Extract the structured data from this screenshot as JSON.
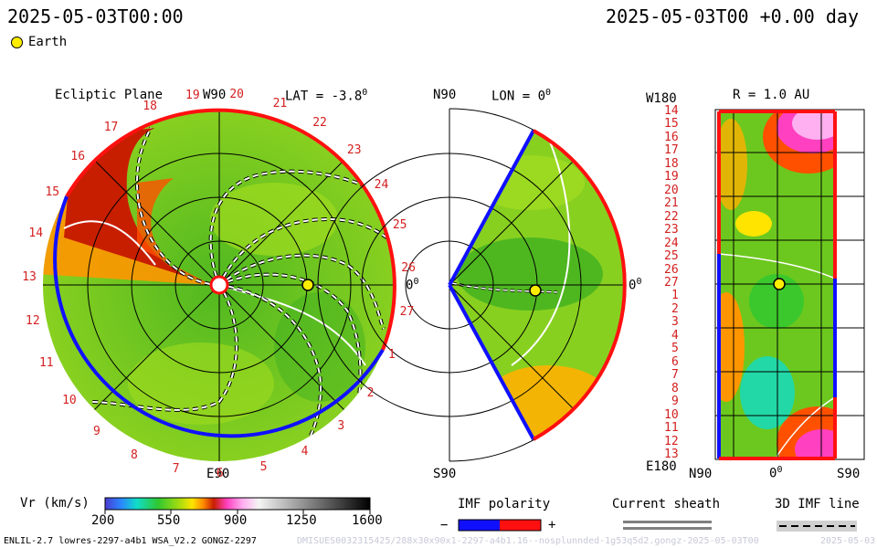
{
  "header": {
    "timestamp_left": "2025-05-03T00:00",
    "timestamp_right": "2025-05-03T00 +0.00 day"
  },
  "legend": {
    "earth_label": "Earth"
  },
  "ecliptic_panel": {
    "title": "Ecliptic Plane",
    "top_label": "W90",
    "lat_label": "LAT = -3.8",
    "lat_unit": "0",
    "right_label": "0",
    "right_unit": "0",
    "bottom_label": "E90",
    "carrington_numbers": [
      "19",
      "20",
      "21",
      "22",
      "23",
      "24",
      "25",
      "26",
      "27",
      "1",
      "2",
      "3",
      "4",
      "5",
      "6",
      "7",
      "8",
      "9",
      "10",
      "11",
      "12",
      "13",
      "14",
      "15",
      "16",
      "17",
      "18"
    ]
  },
  "meridional_panel": {
    "top_label": "N90",
    "lon_label": "LON = 0",
    "lon_unit": "0",
    "right_label": "0",
    "right_unit": "0",
    "bottom_label": "S90"
  },
  "map_panel": {
    "title": "R = 1.0 AU",
    "top_left_label": "W180",
    "bottom_left_label": "E180",
    "bottom_labels": [
      "N90",
      "0",
      "S90"
    ],
    "bottom_mid_unit": "0",
    "row_labels": [
      "14",
      "15",
      "16",
      "17",
      "18",
      "19",
      "20",
      "21",
      "22",
      "23",
      "24",
      "25",
      "26",
      "27",
      "1",
      "2",
      "3",
      "4",
      "5",
      "6",
      "7",
      "8",
      "9",
      "10",
      "11",
      "12",
      "13"
    ]
  },
  "colorbar": {
    "label": "Vr (km/s)",
    "ticks": [
      "200",
      "550",
      "900",
      "1250",
      "1600"
    ],
    "range": [
      200,
      1600
    ]
  },
  "imf_legend": {
    "title": "IMF polarity",
    "minus": "−",
    "plus": "+"
  },
  "sheath_legend": {
    "title": "Current sheath"
  },
  "imf_line_legend": {
    "title": "3D IMF line"
  },
  "footer": {
    "model_info": "ENLIL-2.7 lowres-2297-a4b1 WSA_V2.2 GONGZ-2297",
    "run_info": "DMISUES0032315425/288x30x90x1-2297-a4b1.16--nosplunnded-1g53q5d2.gongz-2025-05-03T00",
    "run_date": "2025-05-03"
  },
  "colors": {
    "positive_polarity": "#ff1010",
    "negative_polarity": "#1010ff",
    "background_wind": "#6cc81e",
    "fast_wind": "#c81e00",
    "earth": "#ffee00"
  }
}
